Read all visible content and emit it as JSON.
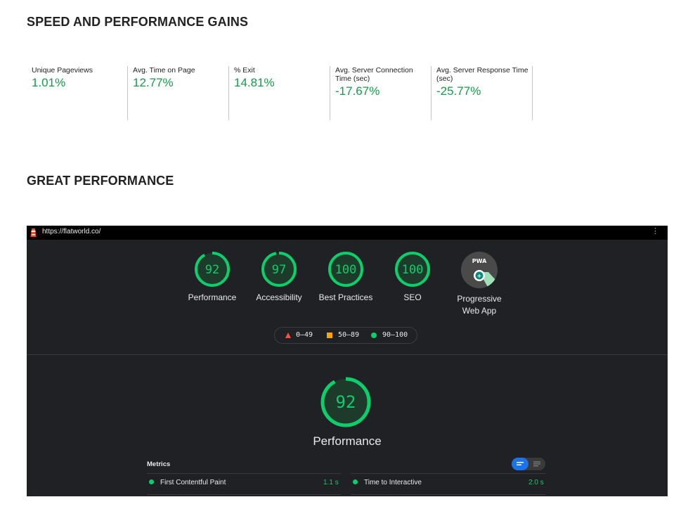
{
  "sections": {
    "gains_title": "SPEED AND PERFORMANCE GAINS",
    "performance_title": "GREAT PERFORMANCE"
  },
  "stats": [
    {
      "label": "Unique Pageviews",
      "value": "1.01%"
    },
    {
      "label": "Avg. Time on Page",
      "value": "12.77%"
    },
    {
      "label": "% Exit",
      "value": "14.81%"
    },
    {
      "label": "Avg. Server Connection Time (sec)",
      "value": "-17.67%"
    },
    {
      "label": "Avg. Server Response Time (sec)",
      "value": "-25.77%"
    }
  ],
  "lighthouse": {
    "url": "https://flatworld.co/",
    "gauges": [
      {
        "score": "92",
        "fraction": 0.92,
        "label": "Performance"
      },
      {
        "score": "97",
        "fraction": 0.97,
        "label": "Accessibility"
      },
      {
        "score": "100",
        "fraction": 1.0,
        "label": "Best Practices"
      },
      {
        "score": "100",
        "fraction": 1.0,
        "label": "SEO"
      }
    ],
    "pwa": {
      "badge": "PWA",
      "label_line1": "Progressive",
      "label_line2": "Web App"
    },
    "legend": {
      "low": "0–49",
      "mid": "50–89",
      "high": "90–100"
    },
    "main_score": {
      "score": "92",
      "fraction": 0.92,
      "label": "Performance"
    },
    "metrics_title": "Metrics",
    "metrics": [
      {
        "name": "First Contentful Paint",
        "value": "1.1 s"
      },
      {
        "name": "Time to Interactive",
        "value": "2.0 s"
      }
    ],
    "colors": {
      "pass": "#0cce6b",
      "average": "#ffa400",
      "fail": "#ff4e42",
      "background": "#202124"
    }
  }
}
